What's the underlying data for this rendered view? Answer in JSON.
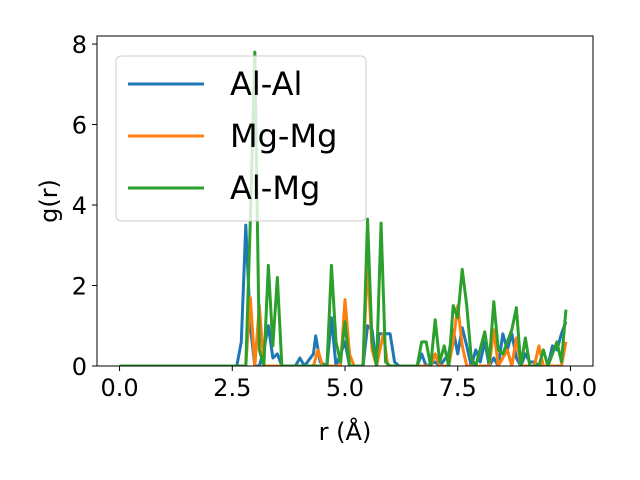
{
  "chart_data": {
    "type": "line",
    "title": "",
    "xlabel": "r (Å)",
    "ylabel": "g(r)",
    "xlim": [
      -0.5,
      10.5
    ],
    "ylim": [
      0,
      8.2
    ],
    "xticks": [
      0.0,
      2.5,
      5.0,
      7.5,
      10.0
    ],
    "xtick_labels": [
      "0.0",
      "2.5",
      "5.0",
      "7.5",
      "10.0"
    ],
    "yticks": [
      0,
      2,
      4,
      6,
      8
    ],
    "ytick_labels": [
      "0",
      "2",
      "4",
      "6",
      "8"
    ],
    "grid": false,
    "legend_position": "upper-left",
    "series": [
      {
        "name": "Al-Al",
        "color": "#1f77b4",
        "points": [
          [
            0,
            0
          ],
          [
            2.6,
            0
          ],
          [
            2.7,
            0.6
          ],
          [
            2.8,
            3.5
          ],
          [
            2.9,
            1.0
          ],
          [
            3.0,
            0
          ],
          [
            3.1,
            0
          ],
          [
            3.2,
            0.4
          ],
          [
            3.3,
            1.0
          ],
          [
            3.4,
            0.2
          ],
          [
            3.5,
            0.3
          ],
          [
            3.6,
            0
          ],
          [
            3.9,
            0
          ],
          [
            4.0,
            0.2
          ],
          [
            4.1,
            0
          ],
          [
            4.3,
            0.3
          ],
          [
            4.35,
            0.75
          ],
          [
            4.45,
            0.1
          ],
          [
            4.6,
            0
          ],
          [
            4.7,
            1.2
          ],
          [
            4.8,
            0
          ],
          [
            4.9,
            0.3
          ],
          [
            5.0,
            0.6
          ],
          [
            5.1,
            0
          ],
          [
            5.4,
            0
          ],
          [
            5.5,
            1.0
          ],
          [
            5.6,
            0.9
          ],
          [
            5.7,
            0
          ],
          [
            5.75,
            0.8
          ],
          [
            5.85,
            0.8
          ],
          [
            6.0,
            0.8
          ],
          [
            6.1,
            0.1
          ],
          [
            6.2,
            0
          ],
          [
            6.6,
            0
          ],
          [
            6.7,
            0.3
          ],
          [
            6.8,
            0
          ],
          [
            7.0,
            0.1
          ],
          [
            7.1,
            0
          ],
          [
            7.3,
            0.3
          ],
          [
            7.4,
            0.9
          ],
          [
            7.5,
            0.3
          ],
          [
            7.6,
            0.95
          ],
          [
            7.7,
            0.5
          ],
          [
            7.8,
            0
          ],
          [
            7.9,
            0.4
          ],
          [
            8.0,
            0.1
          ],
          [
            8.1,
            0.6
          ],
          [
            8.2,
            0
          ],
          [
            8.3,
            0.2
          ],
          [
            8.4,
            0
          ],
          [
            8.5,
            0.8
          ],
          [
            8.6,
            0.4
          ],
          [
            8.7,
            0.8
          ],
          [
            8.8,
            0.2
          ],
          [
            8.9,
            0
          ],
          [
            9.0,
            0.3
          ],
          [
            9.1,
            0.1
          ],
          [
            9.2,
            0.1
          ],
          [
            9.3,
            0
          ],
          [
            9.5,
            0
          ],
          [
            9.6,
            0.5
          ],
          [
            9.7,
            0.4
          ],
          [
            9.8,
            0.8
          ],
          [
            9.9,
            1.1
          ]
        ]
      },
      {
        "name": "Mg-Mg",
        "color": "#ff7f0e",
        "points": [
          [
            0,
            0
          ],
          [
            2.8,
            0
          ],
          [
            2.9,
            1.7
          ],
          [
            3.0,
            0
          ],
          [
            3.1,
            1.5
          ],
          [
            3.2,
            0
          ],
          [
            4.3,
            0
          ],
          [
            4.4,
            0.4
          ],
          [
            4.5,
            0
          ],
          [
            4.9,
            0
          ],
          [
            5.0,
            1.65
          ],
          [
            5.1,
            0.3
          ],
          [
            5.2,
            0
          ],
          [
            5.4,
            0
          ],
          [
            5.5,
            2.6
          ],
          [
            5.6,
            0.4
          ],
          [
            5.7,
            0
          ],
          [
            5.85,
            0.8
          ],
          [
            5.95,
            0
          ],
          [
            6.9,
            0
          ],
          [
            7.0,
            0.3
          ],
          [
            7.1,
            0
          ],
          [
            7.3,
            0
          ],
          [
            7.4,
            0.6
          ],
          [
            7.5,
            1.5
          ],
          [
            7.6,
            0.5
          ],
          [
            7.7,
            0
          ],
          [
            8.2,
            0
          ],
          [
            8.3,
            0.9
          ],
          [
            8.4,
            0
          ],
          [
            8.6,
            0.4
          ],
          [
            8.7,
            0
          ],
          [
            8.8,
            0.7
          ],
          [
            8.9,
            0
          ],
          [
            9.2,
            0
          ],
          [
            9.3,
            0.5
          ],
          [
            9.4,
            0
          ],
          [
            9.8,
            0
          ],
          [
            9.9,
            0.6
          ]
        ]
      },
      {
        "name": "Al-Mg",
        "color": "#2ca02c",
        "points": [
          [
            0,
            0
          ],
          [
            2.8,
            0
          ],
          [
            2.9,
            3.6
          ],
          [
            3.0,
            7.8
          ],
          [
            3.1,
            0.4
          ],
          [
            3.2,
            0
          ],
          [
            3.3,
            2.5
          ],
          [
            3.4,
            0.5
          ],
          [
            3.5,
            2.2
          ],
          [
            3.6,
            0
          ],
          [
            4.6,
            0
          ],
          [
            4.7,
            2.5
          ],
          [
            4.8,
            0.6
          ],
          [
            4.9,
            0.1
          ],
          [
            5.0,
            1.1
          ],
          [
            5.1,
            0
          ],
          [
            5.4,
            0
          ],
          [
            5.5,
            3.65
          ],
          [
            5.6,
            0.6
          ],
          [
            5.7,
            0
          ],
          [
            5.8,
            3.55
          ],
          [
            5.9,
            0.1
          ],
          [
            6.0,
            0
          ],
          [
            6.6,
            0
          ],
          [
            6.7,
            0.6
          ],
          [
            6.8,
            0.6
          ],
          [
            6.9,
            0
          ],
          [
            7.0,
            1.15
          ],
          [
            7.1,
            0.1
          ],
          [
            7.2,
            0.5
          ],
          [
            7.3,
            0
          ],
          [
            7.4,
            1.5
          ],
          [
            7.5,
            1.2
          ],
          [
            7.6,
            2.4
          ],
          [
            7.7,
            1.5
          ],
          [
            7.8,
            0.2
          ],
          [
            7.9,
            0
          ],
          [
            8.1,
            0.85
          ],
          [
            8.2,
            0.1
          ],
          [
            8.3,
            1.6
          ],
          [
            8.4,
            0.4
          ],
          [
            8.5,
            0.3
          ],
          [
            8.6,
            0.6
          ],
          [
            8.7,
            0.9
          ],
          [
            8.8,
            1.45
          ],
          [
            8.9,
            0
          ],
          [
            9.0,
            0.7
          ],
          [
            9.1,
            0
          ],
          [
            9.3,
            0
          ],
          [
            9.4,
            0.4
          ],
          [
            9.5,
            0
          ],
          [
            9.7,
            0.6
          ],
          [
            9.8,
            0.1
          ],
          [
            9.9,
            1.4
          ]
        ]
      }
    ]
  }
}
